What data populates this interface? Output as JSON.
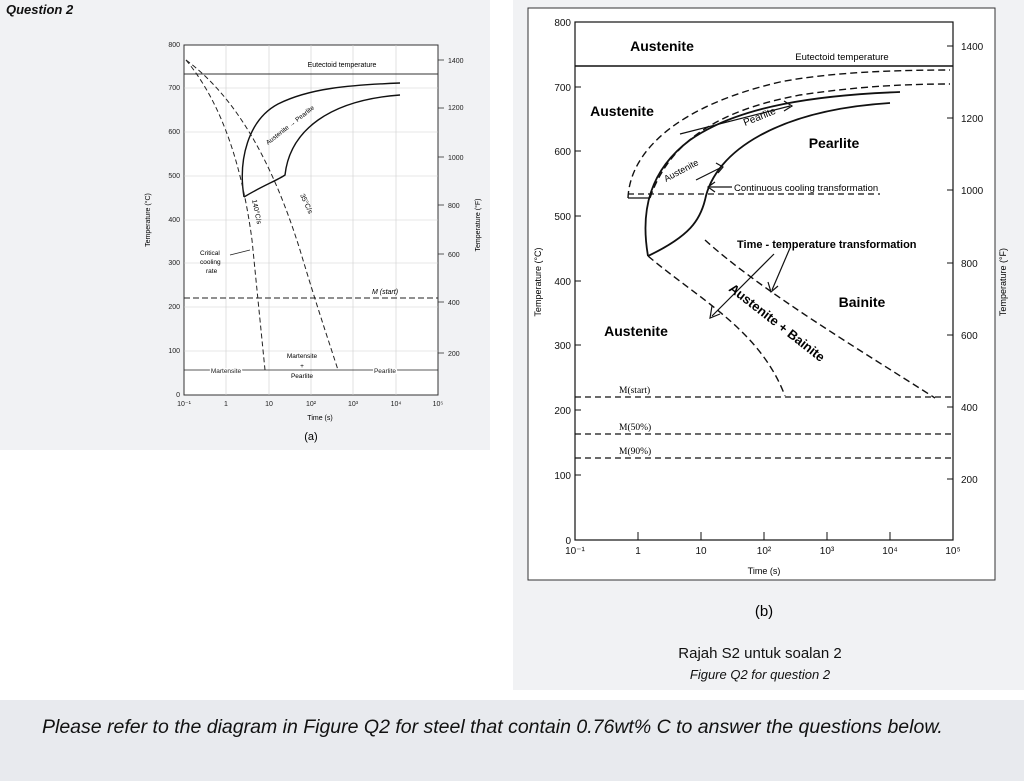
{
  "header": {
    "question": "Question 2"
  },
  "figure_a": {
    "label": "(a)",
    "xlabel": "Time (s)",
    "ylabel_c": "Temperature (°C)",
    "ylabel_f": "Temperature (°F)",
    "x_ticks": [
      "10⁻¹",
      "1",
      "10",
      "10²",
      "10³",
      "10⁴",
      "10⁵"
    ],
    "y_ticks_c": [
      "0",
      "100",
      "200",
      "300",
      "400",
      "500",
      "600",
      "700",
      "800"
    ],
    "y_ticks_f": [
      "200",
      "400",
      "600",
      "800",
      "1000",
      "1200",
      "1400"
    ],
    "eutectoid": "Eutectoid temperature",
    "austenite_pearlite": "Austenite → Pearlite",
    "rate_140": "140°C/s",
    "rate_35": "35°C/s",
    "critical": [
      "Critical",
      "cooling",
      "rate"
    ],
    "mstart": "M (start)",
    "martensite": "Martensite",
    "mart_pearlite": [
      "Martensite",
      "+",
      "Pearlite"
    ],
    "pearlite": "Pearlite"
  },
  "figure_b": {
    "label": "(b)",
    "xlabel": "Time (s)",
    "ylabel_c": "Temperature (°C)",
    "ylabel_f": "Temperature (°F)",
    "x_ticks": [
      "10⁻¹",
      "1",
      "10",
      "10²",
      "10³",
      "10⁴",
      "10⁵"
    ],
    "y_ticks_c": [
      "0",
      "100",
      "200",
      "300",
      "400",
      "500",
      "600",
      "700",
      "800"
    ],
    "y_ticks_f": [
      "200",
      "400",
      "600",
      "800",
      "1000",
      "1200",
      "1400"
    ],
    "austenite_top": "Austenite",
    "austenite_mid": "Austenite",
    "austenite_low": "Austenite",
    "eutectoid": "Eutectoid temperature",
    "pearlite_arrow": "Pearlite",
    "austenite_arrow": "Austenite",
    "pearlite_region": "Pearlite",
    "cct": "Continuous cooling transformation",
    "ttt": "Time - temperature transformation",
    "bainite": "Bainite",
    "aust_bainite": "Austenite + Bainite",
    "m_start": "M(start)",
    "m_50": "M(50%)",
    "m_90": "M(90%)"
  },
  "caption": {
    "malay": "Rajah S2 untuk soalan 2",
    "english": "Figure Q2 for question 2"
  },
  "footer": {
    "instruction": "Please refer to the diagram in Figure Q2 for steel that contain 0.76wt% C to answer the questions below."
  },
  "chart_data": [
    {
      "type": "line",
      "title": "",
      "xlabel": "Time (s)",
      "ylabel": "Temperature (°C)",
      "x_scale": "log",
      "xlim": [
        0.1,
        100000
      ],
      "ylim": [
        0,
        800
      ],
      "series": [
        {
          "name": "Eutectoid temperature",
          "x": [
            0.1,
            100000
          ],
          "y": [
            727,
            727
          ]
        },
        {
          "name": "140°C/s",
          "x": [
            0.1,
            1,
            3,
            5
          ],
          "y": [
            760,
            620,
            340,
            50
          ]
        },
        {
          "name": "35°C/s",
          "x": [
            0.1,
            3,
            10,
            30
          ],
          "y": [
            760,
            560,
            280,
            30
          ]
        },
        {
          "name": "M (start)",
          "x": [
            0.1,
            100000
          ],
          "y": [
            220,
            220
          ]
        }
      ]
    },
    {
      "type": "line",
      "title": "",
      "xlabel": "Time (s)",
      "ylabel": "Temperature (°C)",
      "x_scale": "log",
      "xlim": [
        0.1,
        100000
      ],
      "ylim": [
        0,
        800
      ],
      "series": [
        {
          "name": "Eutectoid temperature",
          "x": [
            0.1,
            100000
          ],
          "y": [
            727,
            727
          ]
        },
        {
          "name": "M(start)",
          "x": [
            0.1,
            100000
          ],
          "y": [
            220,
            220
          ]
        },
        {
          "name": "M(50%)",
          "x": [
            0.1,
            100000
          ],
          "y": [
            160,
            160
          ]
        },
        {
          "name": "M(90%)",
          "x": [
            0.1,
            100000
          ],
          "y": [
            130,
            130
          ]
        }
      ]
    }
  ]
}
